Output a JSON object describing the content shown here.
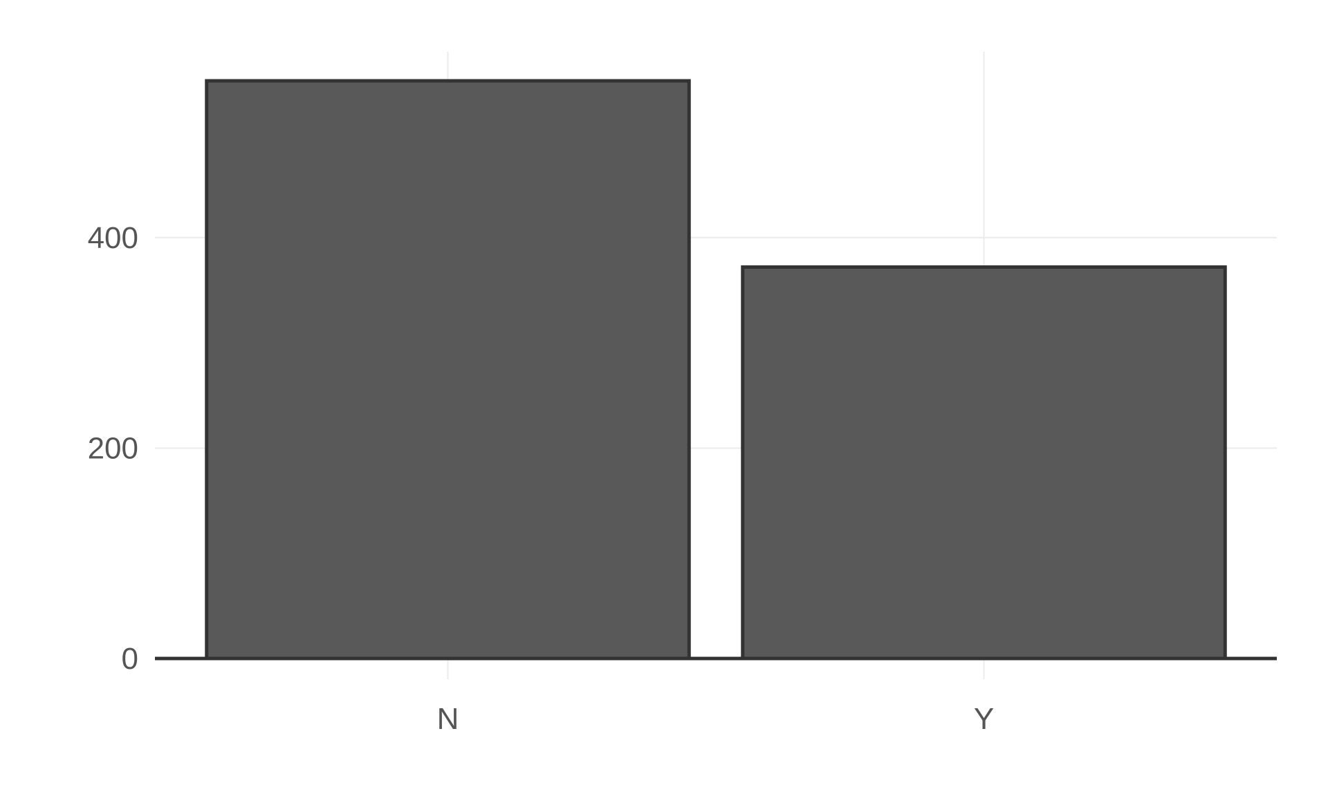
{
  "chart_data": {
    "type": "bar",
    "categories": [
      "N",
      "Y"
    ],
    "values": [
      549,
      372
    ],
    "title": "",
    "xlabel": "",
    "ylabel": "",
    "ylim": [
      0,
      549
    ],
    "yticks": [
      0,
      200,
      400
    ],
    "ytick_labels": [
      "0",
      "200",
      "400"
    ],
    "grid": true,
    "legend": "none",
    "bar_fill": "#595959",
    "bar_outline": "#333333"
  }
}
